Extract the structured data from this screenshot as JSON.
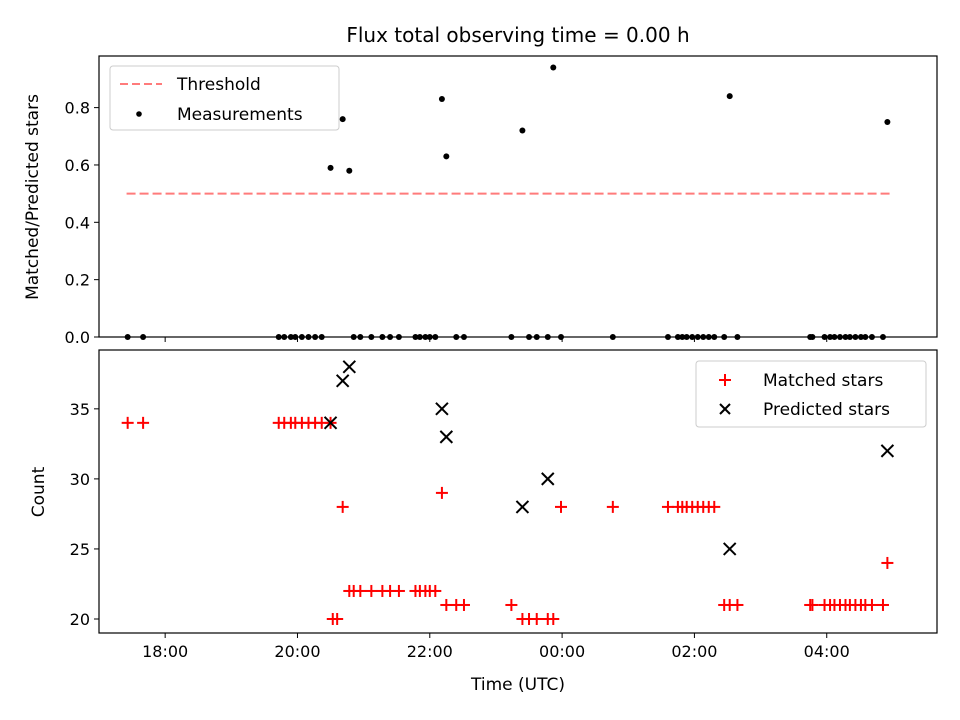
{
  "chart_data": [
    {
      "type": "scatter",
      "title": "Flux total observing time = 0.00 h",
      "xlabel": "",
      "ylabel": "Matched/Predicted stars",
      "ylim": [
        0,
        0.98
      ],
      "yticks": [
        0.0,
        0.2,
        0.4,
        0.6,
        0.8
      ],
      "ytick_labels": [
        "0.0",
        "0.2",
        "0.4",
        "0.6",
        "0.8"
      ],
      "xlim": [
        "17:00",
        "05:40"
      ],
      "legend": {
        "placement": "top-left",
        "entries": [
          "Threshold",
          "Measurements"
        ]
      },
      "colors": {
        "threshold": "#ff7b7b",
        "measurements": "#000000"
      },
      "series": [
        {
          "name": "Threshold",
          "kind": "dashed-line",
          "x": [
            "17:25",
            "05:00"
          ],
          "values": [
            0.5,
            0.5
          ]
        },
        {
          "name": "Measurements",
          "kind": "points",
          "x": [
            "17:26",
            "17:40",
            "19:43",
            "19:48",
            "19:54",
            "19:58",
            "20:04",
            "20:10",
            "20:16",
            "20:22",
            "20:30",
            "20:41",
            "20:47",
            "20:51",
            "20:57",
            "21:07",
            "21:17",
            "21:24",
            "21:32",
            "21:47",
            "21:51",
            "21:56",
            "22:00",
            "22:05",
            "22:11",
            "22:15",
            "22:24",
            "22:31",
            "23:14",
            "23:24",
            "23:30",
            "23:37",
            "23:47",
            "23:52",
            "23:59",
            "00:46",
            "01:36",
            "01:45",
            "01:49",
            "01:53",
            "01:58",
            "02:03",
            "02:08",
            "02:13",
            "02:18",
            "02:27",
            "02:32",
            "02:39",
            "03:45",
            "03:47",
            "03:58",
            "04:03",
            "04:07",
            "04:12",
            "04:17",
            "04:21",
            "04:26",
            "04:31",
            "04:35",
            "04:41",
            "04:51",
            "04:55"
          ],
          "values": [
            0,
            0,
            0,
            0,
            0,
            0,
            0,
            0,
            0,
            0,
            0.59,
            0.76,
            0.58,
            0,
            0,
            0,
            0,
            0,
            0,
            0,
            0,
            0,
            0,
            0,
            0.83,
            0.63,
            0,
            0,
            0,
            0.72,
            0,
            0,
            0,
            0.94,
            0,
            0,
            0,
            0,
            0,
            0,
            0,
            0,
            0,
            0,
            0,
            0,
            0.84,
            0,
            0,
            0,
            0,
            0,
            0,
            0,
            0,
            0,
            0,
            0,
            0,
            0,
            0,
            0.75
          ]
        }
      ]
    },
    {
      "type": "scatter",
      "title": "",
      "xlabel": "Time (UTC)",
      "ylabel": "Count",
      "ylim": [
        19,
        39.2
      ],
      "yticks": [
        20,
        25,
        30,
        35
      ],
      "ytick_labels": [
        "20",
        "25",
        "30",
        "35"
      ],
      "xlim": [
        "17:00",
        "05:40"
      ],
      "xticks": [
        "18:00",
        "20:00",
        "22:00",
        "00:00",
        "02:00",
        "04:00"
      ],
      "legend": {
        "placement": "top-right",
        "entries": [
          "Matched stars",
          "Predicted stars"
        ]
      },
      "colors": {
        "matched": "#ff0000",
        "predicted": "#000000"
      },
      "series": [
        {
          "name": "Matched stars",
          "kind": "plus",
          "x": [
            "17:26",
            "17:40",
            "19:43",
            "19:48",
            "19:54",
            "19:58",
            "20:04",
            "20:10",
            "20:16",
            "20:22",
            "20:30",
            "20:32",
            "20:36",
            "20:41",
            "20:47",
            "20:51",
            "20:57",
            "21:07",
            "21:17",
            "21:24",
            "21:32",
            "21:47",
            "21:51",
            "21:56",
            "22:00",
            "22:05",
            "22:11",
            "22:15",
            "22:24",
            "22:31",
            "23:14",
            "23:24",
            "23:30",
            "23:37",
            "23:47",
            "23:52",
            "23:59",
            "00:46",
            "01:36",
            "01:45",
            "01:49",
            "01:53",
            "01:58",
            "02:03",
            "02:08",
            "02:13",
            "02:18",
            "02:27",
            "02:32",
            "02:39",
            "03:45",
            "03:47",
            "03:58",
            "04:03",
            "04:07",
            "04:12",
            "04:17",
            "04:21",
            "04:26",
            "04:31",
            "04:35",
            "04:41",
            "04:51",
            "04:55"
          ],
          "values": [
            34,
            34,
            34,
            34,
            34,
            34,
            34,
            34,
            34,
            34,
            34,
            20,
            20,
            28,
            22,
            22,
            22,
            22,
            22,
            22,
            22,
            22,
            22,
            22,
            22,
            22,
            29,
            21,
            21,
            21,
            21,
            20,
            20,
            20,
            20,
            20,
            28,
            28,
            28,
            28,
            28,
            28,
            28,
            28,
            28,
            28,
            28,
            21,
            21,
            21,
            21,
            21,
            21,
            21,
            21,
            21,
            21,
            21,
            21,
            21,
            21,
            21,
            21,
            24
          ]
        },
        {
          "name": "Predicted stars",
          "kind": "x",
          "x": [
            "20:30",
            "20:41",
            "20:47",
            "22:11",
            "22:15",
            "23:14",
            "23:24",
            "23:47",
            "02:32",
            "04:55"
          ],
          "values": [
            34,
            37,
            38,
            35,
            33,
            null,
            28,
            30,
            25,
            32
          ]
        }
      ]
    }
  ]
}
